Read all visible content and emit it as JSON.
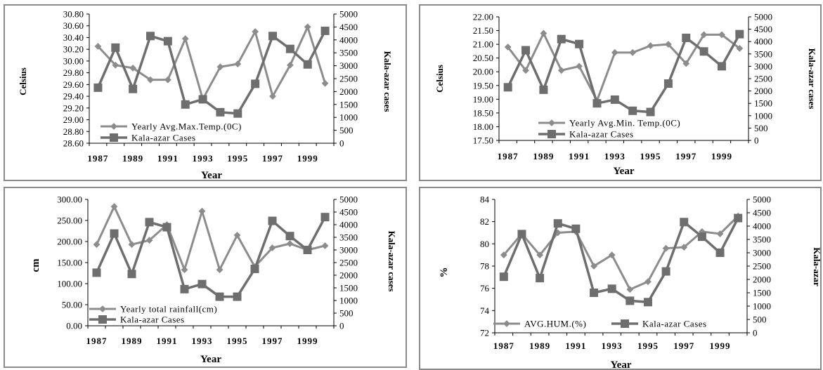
{
  "chart_data": [
    {
      "type": "line",
      "x": [
        1987,
        1988,
        1989,
        1990,
        1991,
        1992,
        1993,
        1994,
        1995,
        1996,
        1997,
        1998,
        1999,
        2000
      ],
      "xticks": [
        "1987",
        "1989",
        "1991",
        "1993",
        "1995",
        "1997",
        "1999"
      ],
      "xlabel": "Year",
      "ylabel": "Celsius",
      "y2label": "Kala-azar cases",
      "ylim": [
        28.6,
        30.8
      ],
      "yticks": [
        "28.60",
        "28.80",
        "29.00",
        "29.20",
        "29.40",
        "29.60",
        "29.80",
        "30.00",
        "30.20",
        "30.40",
        "30.60",
        "30.80"
      ],
      "y2lim": [
        0,
        5000
      ],
      "y2ticks": [
        "0",
        "500",
        "1000",
        "1500",
        "2000",
        "2500",
        "3000",
        "3500",
        "4000",
        "4500",
        "5000"
      ],
      "legend_position": "bottom-left",
      "series": [
        {
          "name": "Yearly Avg.Max.Temp.(0C)",
          "axis": "left",
          "marker": "diamond",
          "color": "#8c8c8c",
          "values": [
            30.25,
            29.93,
            29.88,
            29.68,
            29.68,
            30.38,
            29.35,
            29.9,
            29.95,
            30.5,
            29.4,
            29.93,
            30.58,
            29.62
          ]
        },
        {
          "name": "Kala-azar Cases",
          "axis": "right",
          "marker": "square",
          "color": "#6e6e6e",
          "values": [
            2150,
            3700,
            2100,
            4150,
            3950,
            1500,
            1700,
            1200,
            1150,
            2300,
            4150,
            3650,
            3050,
            4350
          ]
        }
      ]
    },
    {
      "type": "line",
      "x": [
        1987,
        1988,
        1989,
        1990,
        1991,
        1992,
        1993,
        1994,
        1995,
        1996,
        1997,
        1998,
        1999,
        2000
      ],
      "xticks": [
        "1987",
        "1989",
        "1991",
        "1993",
        "1995",
        "1997",
        "1999"
      ],
      "xlabel": "Year",
      "ylabel": "Celsius",
      "y2label": "Kala-azar cases",
      "ylim": [
        17.5,
        22.0
      ],
      "yticks": [
        "17.50",
        "18.00",
        "18.50",
        "19.00",
        "19.50",
        "20.00",
        "20.50",
        "21.00",
        "21.50",
        "22.00"
      ],
      "y2lim": [
        0,
        5000
      ],
      "y2ticks": [
        "0",
        "500",
        "1000",
        "1500",
        "2000",
        "2500",
        "3000",
        "3500",
        "4000",
        "4500",
        "5000"
      ],
      "legend_position": "bottom-center",
      "series": [
        {
          "name": "Yearly Avg.Min. Temp.(0C)",
          "axis": "left",
          "marker": "diamond",
          "color": "#8c8c8c",
          "values": [
            20.9,
            20.05,
            21.4,
            20.05,
            20.2,
            18.95,
            20.7,
            20.7,
            20.95,
            21.0,
            20.3,
            21.35,
            21.35,
            20.85
          ]
        },
        {
          "name": "Kala-azar Cases",
          "axis": "right",
          "marker": "square",
          "color": "#6e6e6e",
          "values": [
            2150,
            3650,
            2050,
            4100,
            3900,
            1500,
            1650,
            1200,
            1150,
            2300,
            4150,
            3600,
            3000,
            4300
          ]
        }
      ]
    },
    {
      "type": "line",
      "x": [
        1987,
        1988,
        1989,
        1990,
        1991,
        1992,
        1993,
        1994,
        1995,
        1996,
        1997,
        1998,
        1999,
        2000
      ],
      "xticks": [
        "1987",
        "1989",
        "1991",
        "1993",
        "1995",
        "1997",
        "1999"
      ],
      "xlabel": "Year",
      "ylabel": "cm",
      "y2label": "Kala-azar cases",
      "ylim": [
        0,
        300
      ],
      "yticks": [
        "0.00",
        "50.00",
        "100.00",
        "150.00",
        "200.00",
        "250.00",
        "300.00"
      ],
      "y2lim": [
        0,
        5000
      ],
      "y2ticks": [
        "0",
        "500",
        "1000",
        "1500",
        "2000",
        "2500",
        "3000",
        "3500",
        "4000",
        "4500",
        "5000"
      ],
      "legend_position": "bottom-left",
      "series": [
        {
          "name": "Yearly total rainfall(cm)",
          "axis": "left",
          "marker": "diamond",
          "color": "#8c8c8c",
          "values": [
            193,
            283,
            193,
            203,
            240,
            133,
            272,
            133,
            215,
            140,
            185,
            195,
            180,
            190
          ]
        },
        {
          "name": "Kala-azar Cases",
          "axis": "right",
          "marker": "square",
          "color": "#6e6e6e",
          "values": [
            2100,
            3650,
            2050,
            4100,
            3900,
            1450,
            1650,
            1150,
            1150,
            2250,
            4150,
            3550,
            3000,
            4300
          ]
        }
      ]
    },
    {
      "type": "line",
      "x": [
        1987,
        1988,
        1989,
        1990,
        1991,
        1992,
        1993,
        1994,
        1995,
        1996,
        1997,
        1998,
        1999,
        2000
      ],
      "xticks": [
        "1987",
        "1989",
        "1991",
        "1993",
        "1995",
        "1997",
        "1999"
      ],
      "xlabel": "Year",
      "ylabel": "%",
      "y2label": "Kala-azar",
      "ylim": [
        72,
        84
      ],
      "yticks": [
        "72",
        "74",
        "76",
        "78",
        "80",
        "82",
        "84"
      ],
      "y2lim": [
        0,
        5000
      ],
      "y2ticks": [
        "0",
        "500",
        "1000",
        "1500",
        "2000",
        "2500",
        "3000",
        "3500",
        "4000",
        "4500",
        "5000"
      ],
      "legend_position": "bottom",
      "series": [
        {
          "name": "AVG.HUM.(%)",
          "axis": "left",
          "marker": "diamond",
          "color": "#8c8c8c",
          "values": [
            79.0,
            80.9,
            79.0,
            81.0,
            81.1,
            78.0,
            79.0,
            75.9,
            76.6,
            79.6,
            79.7,
            81.1,
            80.9,
            82.5
          ]
        },
        {
          "name": "Kala-azar Cases",
          "axis": "right",
          "marker": "square",
          "color": "#6e6e6e",
          "values": [
            2100,
            3700,
            2050,
            4100,
            3900,
            1500,
            1650,
            1200,
            1150,
            2300,
            4150,
            3600,
            3000,
            4300
          ]
        }
      ]
    }
  ]
}
